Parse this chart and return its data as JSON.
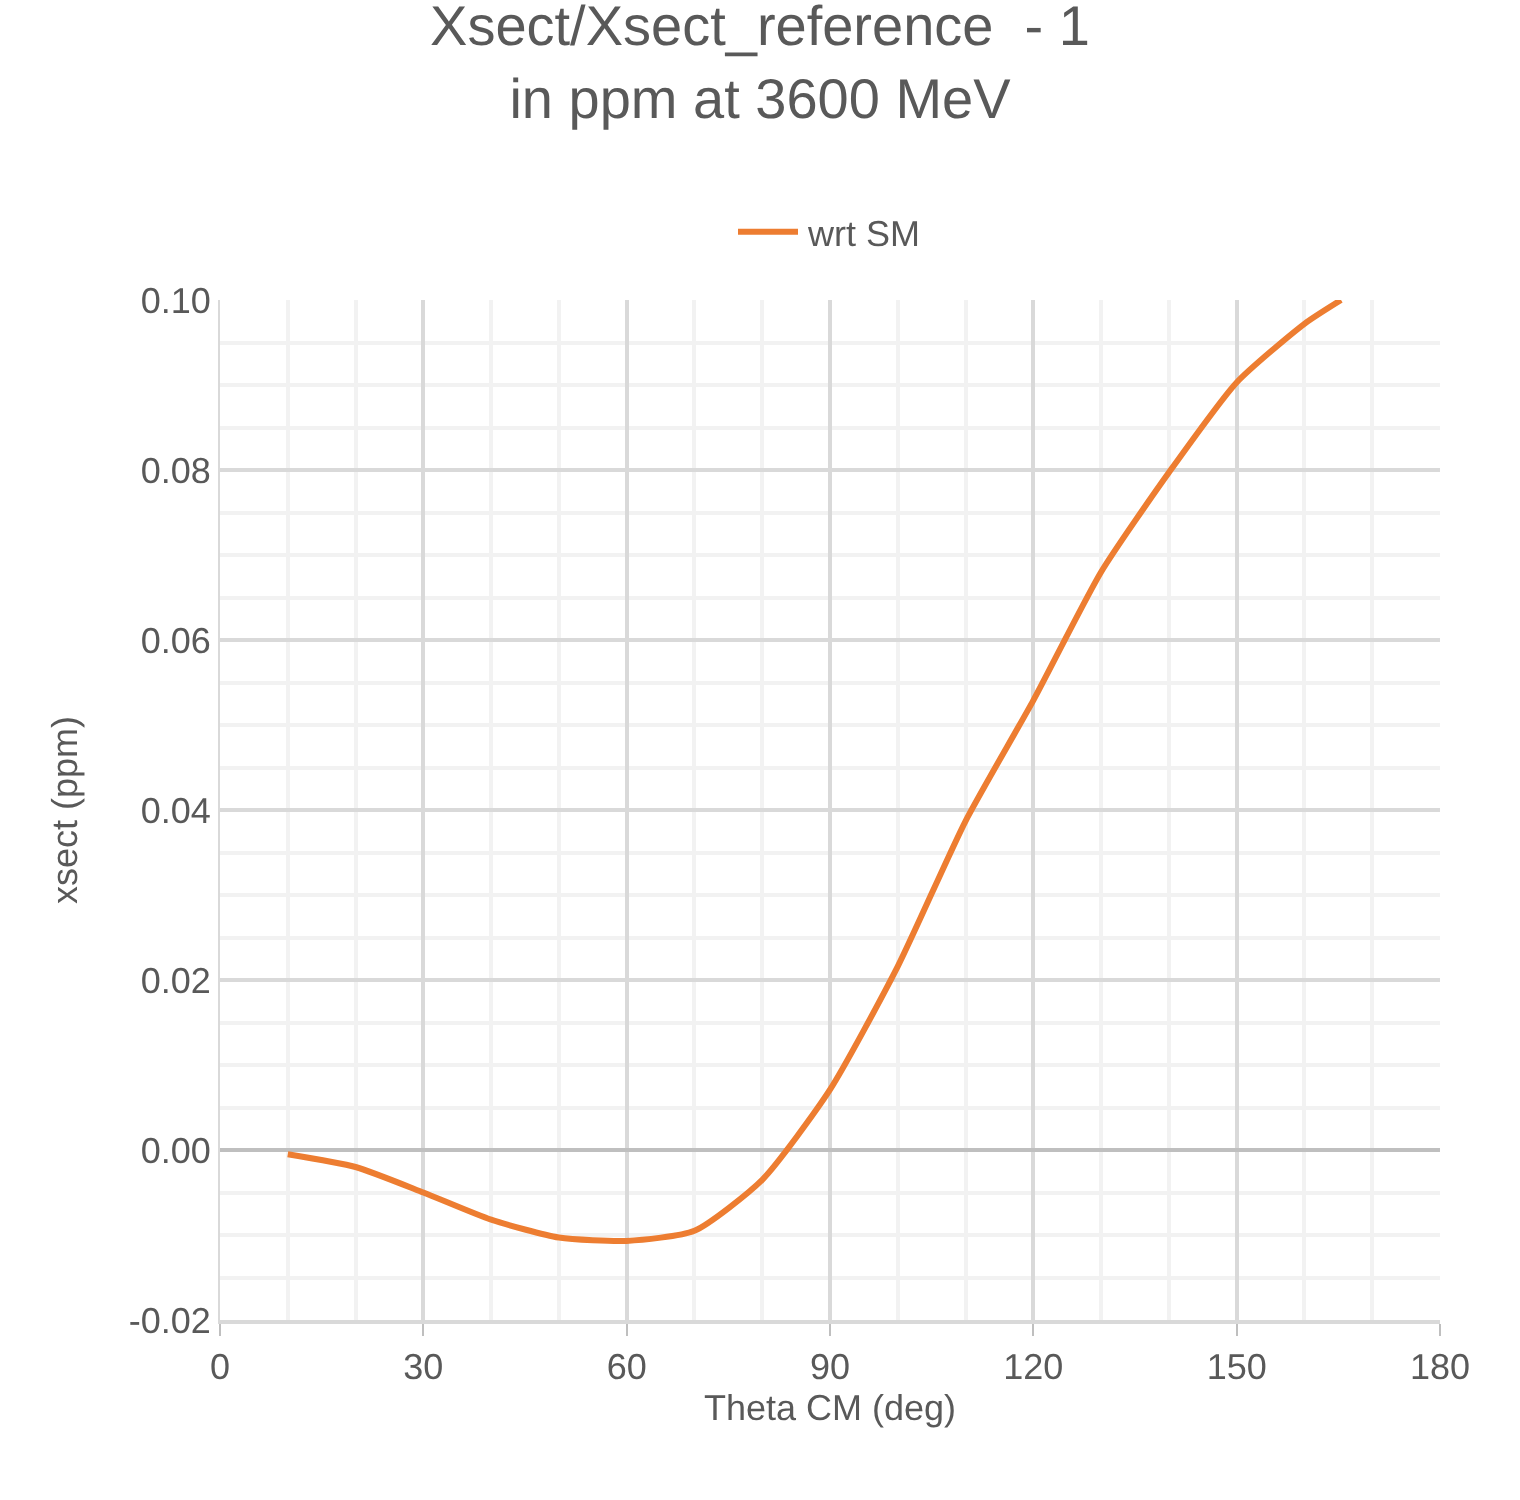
{
  "chart_data": {
    "type": "line",
    "title": "Xsect/Xsect_reference  - 1\nin ppm at 3600 MeV",
    "xlabel": "Theta CM (deg)",
    "ylabel": "xsect (ppm)",
    "x": [
      10,
      20,
      30,
      40,
      50,
      60,
      70,
      80,
      90,
      100,
      110,
      120,
      130,
      140,
      150,
      160,
      165.4
    ],
    "series": [
      {
        "name": "wrt SM",
        "color": "#ed7d31",
        "values": [
          -0.0005,
          -0.002,
          -0.005,
          -0.0082,
          -0.0103,
          -0.0107,
          -0.0095,
          -0.0035,
          0.0071,
          0.0216,
          0.0387,
          0.0529,
          0.068,
          0.0797,
          0.0903,
          0.0972,
          0.1
        ]
      }
    ],
    "xlim": [
      0,
      180
    ],
    "xticks": [
      0,
      30,
      60,
      90,
      120,
      150,
      180
    ],
    "ylim": [
      -0.02,
      0.1
    ],
    "yticks": [
      {
        "value": -0.02,
        "label": "-0.02"
      },
      {
        "value": 0,
        "label": "0.00"
      },
      {
        "value": 0.02,
        "label": "0.02"
      },
      {
        "value": 0.04,
        "label": "0.04"
      },
      {
        "value": 0.06,
        "label": "0.06"
      },
      {
        "value": 0.08,
        "label": "0.08"
      },
      {
        "value": 0.1,
        "label": "0.10"
      }
    ],
    "grid": true,
    "legend": "top",
    "marker": "none",
    "line_style": "solid"
  }
}
